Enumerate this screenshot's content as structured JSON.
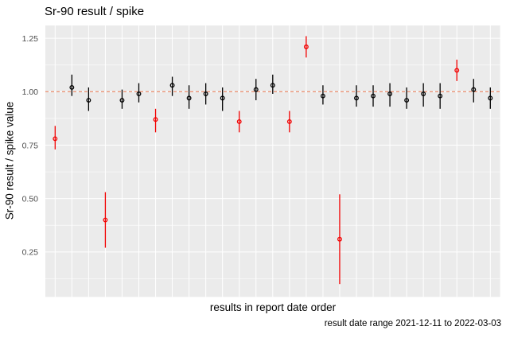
{
  "chart_data": {
    "type": "scatter",
    "title": "Sr-90 result / spike",
    "xlabel": "results in report date order",
    "ylabel": "Sr-90 result / spike value",
    "caption": "result date range 2021-12-11 to 2022-03-03",
    "ylim": [
      0.04,
      1.31
    ],
    "y_major_ticks": [
      0.25,
      0.5,
      0.75,
      1.0,
      1.25
    ],
    "y_tick_labels": [
      "0.25",
      "0.50",
      "0.75",
      "1.00",
      "1.25"
    ],
    "y_minor_ticks": [
      0.125,
      0.375,
      0.625,
      0.875,
      1.125
    ],
    "x_tick_labels": "none",
    "legend": "none",
    "grid": "gray panel, white gridlines, one vertical gridline per result",
    "reference_line": {
      "y": 1.0,
      "style": "dashed",
      "color": "#EC9578"
    },
    "colors": {
      "panel_bg": "#EBEBEB",
      "grid": "#FFFFFF",
      "tick_label": "#4D4D4D",
      "normal_point": "#000000",
      "flagged_point": "#F20000"
    },
    "points": [
      {
        "x": 1,
        "y": 0.78,
        "ymin": 0.73,
        "ymax": 0.84,
        "flag": "red"
      },
      {
        "x": 2,
        "y": 1.02,
        "ymin": 0.98,
        "ymax": 1.08,
        "flag": "black"
      },
      {
        "x": 3,
        "y": 0.96,
        "ymin": 0.91,
        "ymax": 1.02,
        "flag": "black"
      },
      {
        "x": 4,
        "y": 0.4,
        "ymin": 0.27,
        "ymax": 0.53,
        "flag": "red"
      },
      {
        "x": 5,
        "y": 0.96,
        "ymin": 0.92,
        "ymax": 1.01,
        "flag": "black"
      },
      {
        "x": 6,
        "y": 0.99,
        "ymin": 0.95,
        "ymax": 1.04,
        "flag": "black"
      },
      {
        "x": 7,
        "y": 0.87,
        "ymin": 0.81,
        "ymax": 0.92,
        "flag": "red"
      },
      {
        "x": 8,
        "y": 1.03,
        "ymin": 0.98,
        "ymax": 1.07,
        "flag": "black"
      },
      {
        "x": 9,
        "y": 0.97,
        "ymin": 0.92,
        "ymax": 1.03,
        "flag": "black"
      },
      {
        "x": 10,
        "y": 0.99,
        "ymin": 0.94,
        "ymax": 1.04,
        "flag": "black"
      },
      {
        "x": 11,
        "y": 0.97,
        "ymin": 0.91,
        "ymax": 1.02,
        "flag": "black"
      },
      {
        "x": 12,
        "y": 0.86,
        "ymin": 0.81,
        "ymax": 0.91,
        "flag": "red"
      },
      {
        "x": 13,
        "y": 1.01,
        "ymin": 0.96,
        "ymax": 1.06,
        "flag": "black"
      },
      {
        "x": 14,
        "y": 1.03,
        "ymin": 0.99,
        "ymax": 1.08,
        "flag": "black"
      },
      {
        "x": 15,
        "y": 0.86,
        "ymin": 0.81,
        "ymax": 0.91,
        "flag": "red"
      },
      {
        "x": 16,
        "y": 1.21,
        "ymin": 1.16,
        "ymax": 1.26,
        "flag": "red"
      },
      {
        "x": 17,
        "y": 0.98,
        "ymin": 0.94,
        "ymax": 1.03,
        "flag": "black"
      },
      {
        "x": 18,
        "y": 0.31,
        "ymin": 0.1,
        "ymax": 0.52,
        "flag": "red"
      },
      {
        "x": 19,
        "y": 0.97,
        "ymin": 0.93,
        "ymax": 1.03,
        "flag": "black"
      },
      {
        "x": 20,
        "y": 0.98,
        "ymin": 0.93,
        "ymax": 1.03,
        "flag": "black"
      },
      {
        "x": 21,
        "y": 0.99,
        "ymin": 0.93,
        "ymax": 1.04,
        "flag": "black"
      },
      {
        "x": 22,
        "y": 0.96,
        "ymin": 0.92,
        "ymax": 1.02,
        "flag": "black"
      },
      {
        "x": 23,
        "y": 0.99,
        "ymin": 0.93,
        "ymax": 1.04,
        "flag": "black"
      },
      {
        "x": 24,
        "y": 0.98,
        "ymin": 0.92,
        "ymax": 1.04,
        "flag": "black"
      },
      {
        "x": 25,
        "y": 1.1,
        "ymin": 1.05,
        "ymax": 1.15,
        "flag": "red"
      },
      {
        "x": 26,
        "y": 1.01,
        "ymin": 0.95,
        "ymax": 1.06,
        "flag": "black"
      },
      {
        "x": 27,
        "y": 0.97,
        "ymin": 0.92,
        "ymax": 1.02,
        "flag": "black"
      }
    ]
  }
}
